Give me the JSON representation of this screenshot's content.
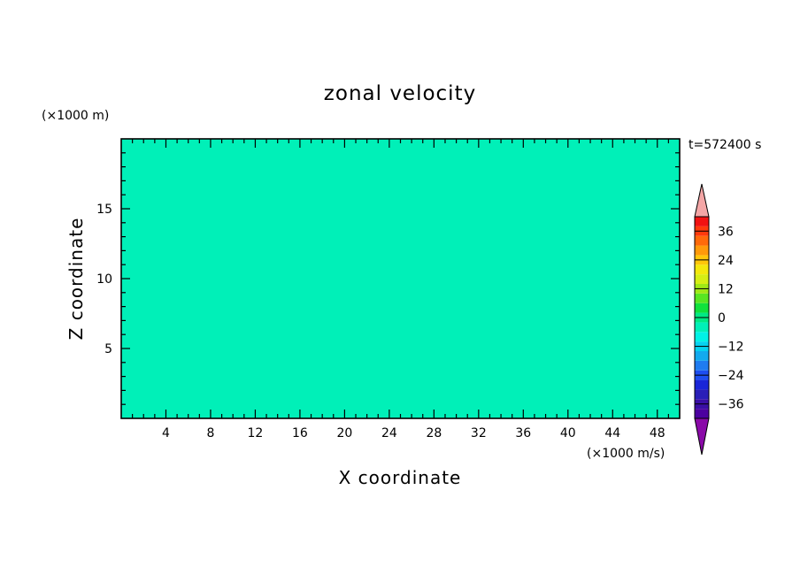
{
  "chart_data": {
    "type": "heatmap",
    "title": "zonal velocity",
    "xlabel": "X coordinate",
    "ylabel": "Z coordinate",
    "y_units": "(×1000 m)",
    "x_units": "(×1000 m/s)",
    "time_label": "t=572400 s",
    "xlim": [
      0,
      50
    ],
    "ylim": [
      0,
      20
    ],
    "x_ticks": [
      4,
      8,
      12,
      16,
      20,
      24,
      28,
      32,
      36,
      40,
      44,
      48
    ],
    "y_ticks": [
      5,
      10,
      15
    ],
    "grid": false,
    "legend": "right colorbar",
    "colorbar": {
      "min": -42,
      "max": 42,
      "step": 4,
      "tick_values": [
        36,
        24,
        12,
        0,
        -12,
        -24,
        -36
      ],
      "tick_labels": [
        "36",
        "24",
        "12",
        "0",
        "−12",
        "−24",
        "−36"
      ],
      "colors": [
        "#4c00a0",
        "#3a0fa6",
        "#2a1fb8",
        "#1a26d8",
        "#1e4ef0",
        "#1f7cf0",
        "#12aaee",
        "#05d2f0",
        "#00f2e6",
        "#00f0b8",
        "#00ea84",
        "#10e23c",
        "#58e622",
        "#a0e816",
        "#d6ee14",
        "#f4e80c",
        "#ffc60a",
        "#ff9a0a",
        "#ff6a0a",
        "#ff3a0c",
        "#f21212"
      ],
      "under_color": "#8a0aa8",
      "over_color": "#f4a6a6"
    },
    "field_levels": {
      "-6": "#00f0b8",
      "-2": "#00ea84",
      "2": "#10e23c",
      "6": "#58e622",
      "10": "#a0e816",
      "-10": "#00f2e6",
      "-14": "#05d2f0",
      "-18": "#12aaee"
    }
  }
}
